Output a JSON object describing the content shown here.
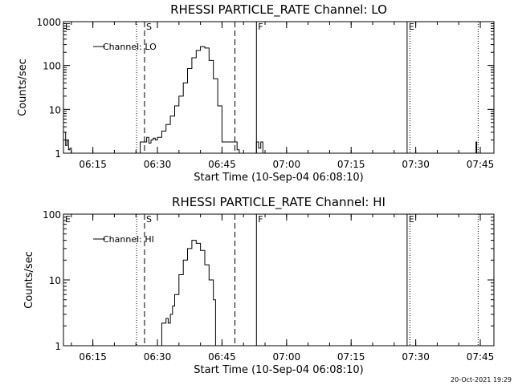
{
  "chart_data": [
    {
      "type": "line",
      "title": "RHESSI PARTICLE_RATE Channel: LO",
      "xlabel": "Start Time (10-Sep-04 06:08:10)",
      "ylabel": "Counts/sec",
      "y_scale": "log",
      "xlim": [
        "06:08:10",
        "07:48:10"
      ],
      "ylim": [
        1,
        1000
      ],
      "xticks": [
        "06:15",
        "06:30",
        "06:45",
        "07:00",
        "07:15",
        "07:30",
        "07:45"
      ],
      "yticks": [
        "1",
        "10",
        "100",
        "1000"
      ],
      "legend": "top-left",
      "series": [
        {
          "name": "Channel: LO",
          "x": [
            "06:08:10",
            "06:08:40",
            "06:09:00",
            "06:09:20",
            "06:09:40",
            "06:10:00",
            "06:25:10",
            "06:26:00",
            "06:27:00",
            "06:27:30",
            "06:28:00",
            "06:28:30",
            "06:29:00",
            "06:29:30",
            "06:30:00",
            "06:31:00",
            "06:32:00",
            "06:33:00",
            "06:34:00",
            "06:35:00",
            "06:36:00",
            "06:37:00",
            "06:38:00",
            "06:39:00",
            "06:40:00",
            "06:41:00",
            "06:42:00",
            "06:43:00",
            "06:44:00",
            "06:45:00",
            "06:46:00",
            "06:47:00",
            "06:48:00",
            "06:48:30",
            "06:49:00",
            "06:49:40",
            "06:50:00",
            "06:52:30",
            "06:53:00",
            "06:53:30",
            "06:54:00",
            "06:54:30",
            "07:43:30",
            "07:44:00",
            "07:44:10"
          ],
          "values": [
            3,
            1.5,
            2,
            1.2,
            1.3,
            1,
            1,
            1.8,
            1.8,
            2.3,
            1.7,
            2.0,
            2.2,
            2.0,
            2.3,
            3.2,
            4.5,
            7,
            12,
            20,
            40,
            85,
            150,
            220,
            270,
            250,
            130,
            50,
            12,
            1.8,
            1.8,
            1.8,
            1.8,
            1.2,
            1,
            1,
            1,
            1,
            1.8,
            1.3,
            1.8,
            1,
            1,
            1.8,
            1
          ]
        }
      ],
      "vlines": [
        {
          "x": "06:25:10",
          "style": "dotted",
          "label": ""
        },
        {
          "x": "06:27:00",
          "style": "dashed",
          "label": "S"
        },
        {
          "x": "06:48:00",
          "style": "dashed",
          "label": ""
        },
        {
          "x": "06:53:00",
          "style": "solid",
          "label": "F"
        },
        {
          "x": "07:28:00",
          "style": "solid",
          "label": "E"
        },
        {
          "x": "07:28:40",
          "style": "dotted",
          "label": ""
        },
        {
          "x": "07:44:30",
          "style": "dotted",
          "label": ""
        },
        {
          "x": "06:08:10",
          "style": "none",
          "label": "E"
        }
      ]
    },
    {
      "type": "line",
      "title": "RHESSI PARTICLE_RATE Channel: HI",
      "xlabel": "Start Time (10-Sep-04 06:08:10)",
      "ylabel": "Counts/sec",
      "y_scale": "log",
      "xlim": [
        "06:08:10",
        "07:48:10"
      ],
      "ylim": [
        1,
        100
      ],
      "xticks": [
        "06:15",
        "06:30",
        "06:45",
        "07:00",
        "07:15",
        "07:30",
        "07:45"
      ],
      "yticks": [
        "1",
        "10",
        "100"
      ],
      "legend": "top-left",
      "series": [
        {
          "name": "Channel: HI",
          "x": [
            "06:29:00",
            "06:30:00",
            "06:31:00",
            "06:31:30",
            "06:32:00",
            "06:32:30",
            "06:33:00",
            "06:33:30",
            "06:34:00",
            "06:35:00",
            "06:36:00",
            "06:37:00",
            "06:38:00",
            "06:39:00",
            "06:40:00",
            "06:41:00",
            "06:42:00",
            "06:43:00",
            "06:43:30"
          ],
          "values": [
            1,
            1,
            2.2,
            2.2,
            2.6,
            2.2,
            3,
            4,
            6,
            12,
            20,
            30,
            40,
            36,
            28,
            17,
            10,
            5,
            1
          ]
        }
      ],
      "vlines": [
        {
          "x": "06:25:10",
          "style": "dotted",
          "label": ""
        },
        {
          "x": "06:27:00",
          "style": "dashed",
          "label": "S"
        },
        {
          "x": "06:48:00",
          "style": "dashed",
          "label": ""
        },
        {
          "x": "06:53:00",
          "style": "solid",
          "label": "F"
        },
        {
          "x": "07:28:00",
          "style": "solid",
          "label": "E"
        },
        {
          "x": "07:28:40",
          "style": "dotted",
          "label": ""
        },
        {
          "x": "07:44:30",
          "style": "dotted",
          "label": ""
        },
        {
          "x": "06:08:10",
          "style": "none",
          "label": "E"
        }
      ]
    }
  ],
  "footer": {
    "timestamp": "20-Oct-2021 19:29"
  }
}
